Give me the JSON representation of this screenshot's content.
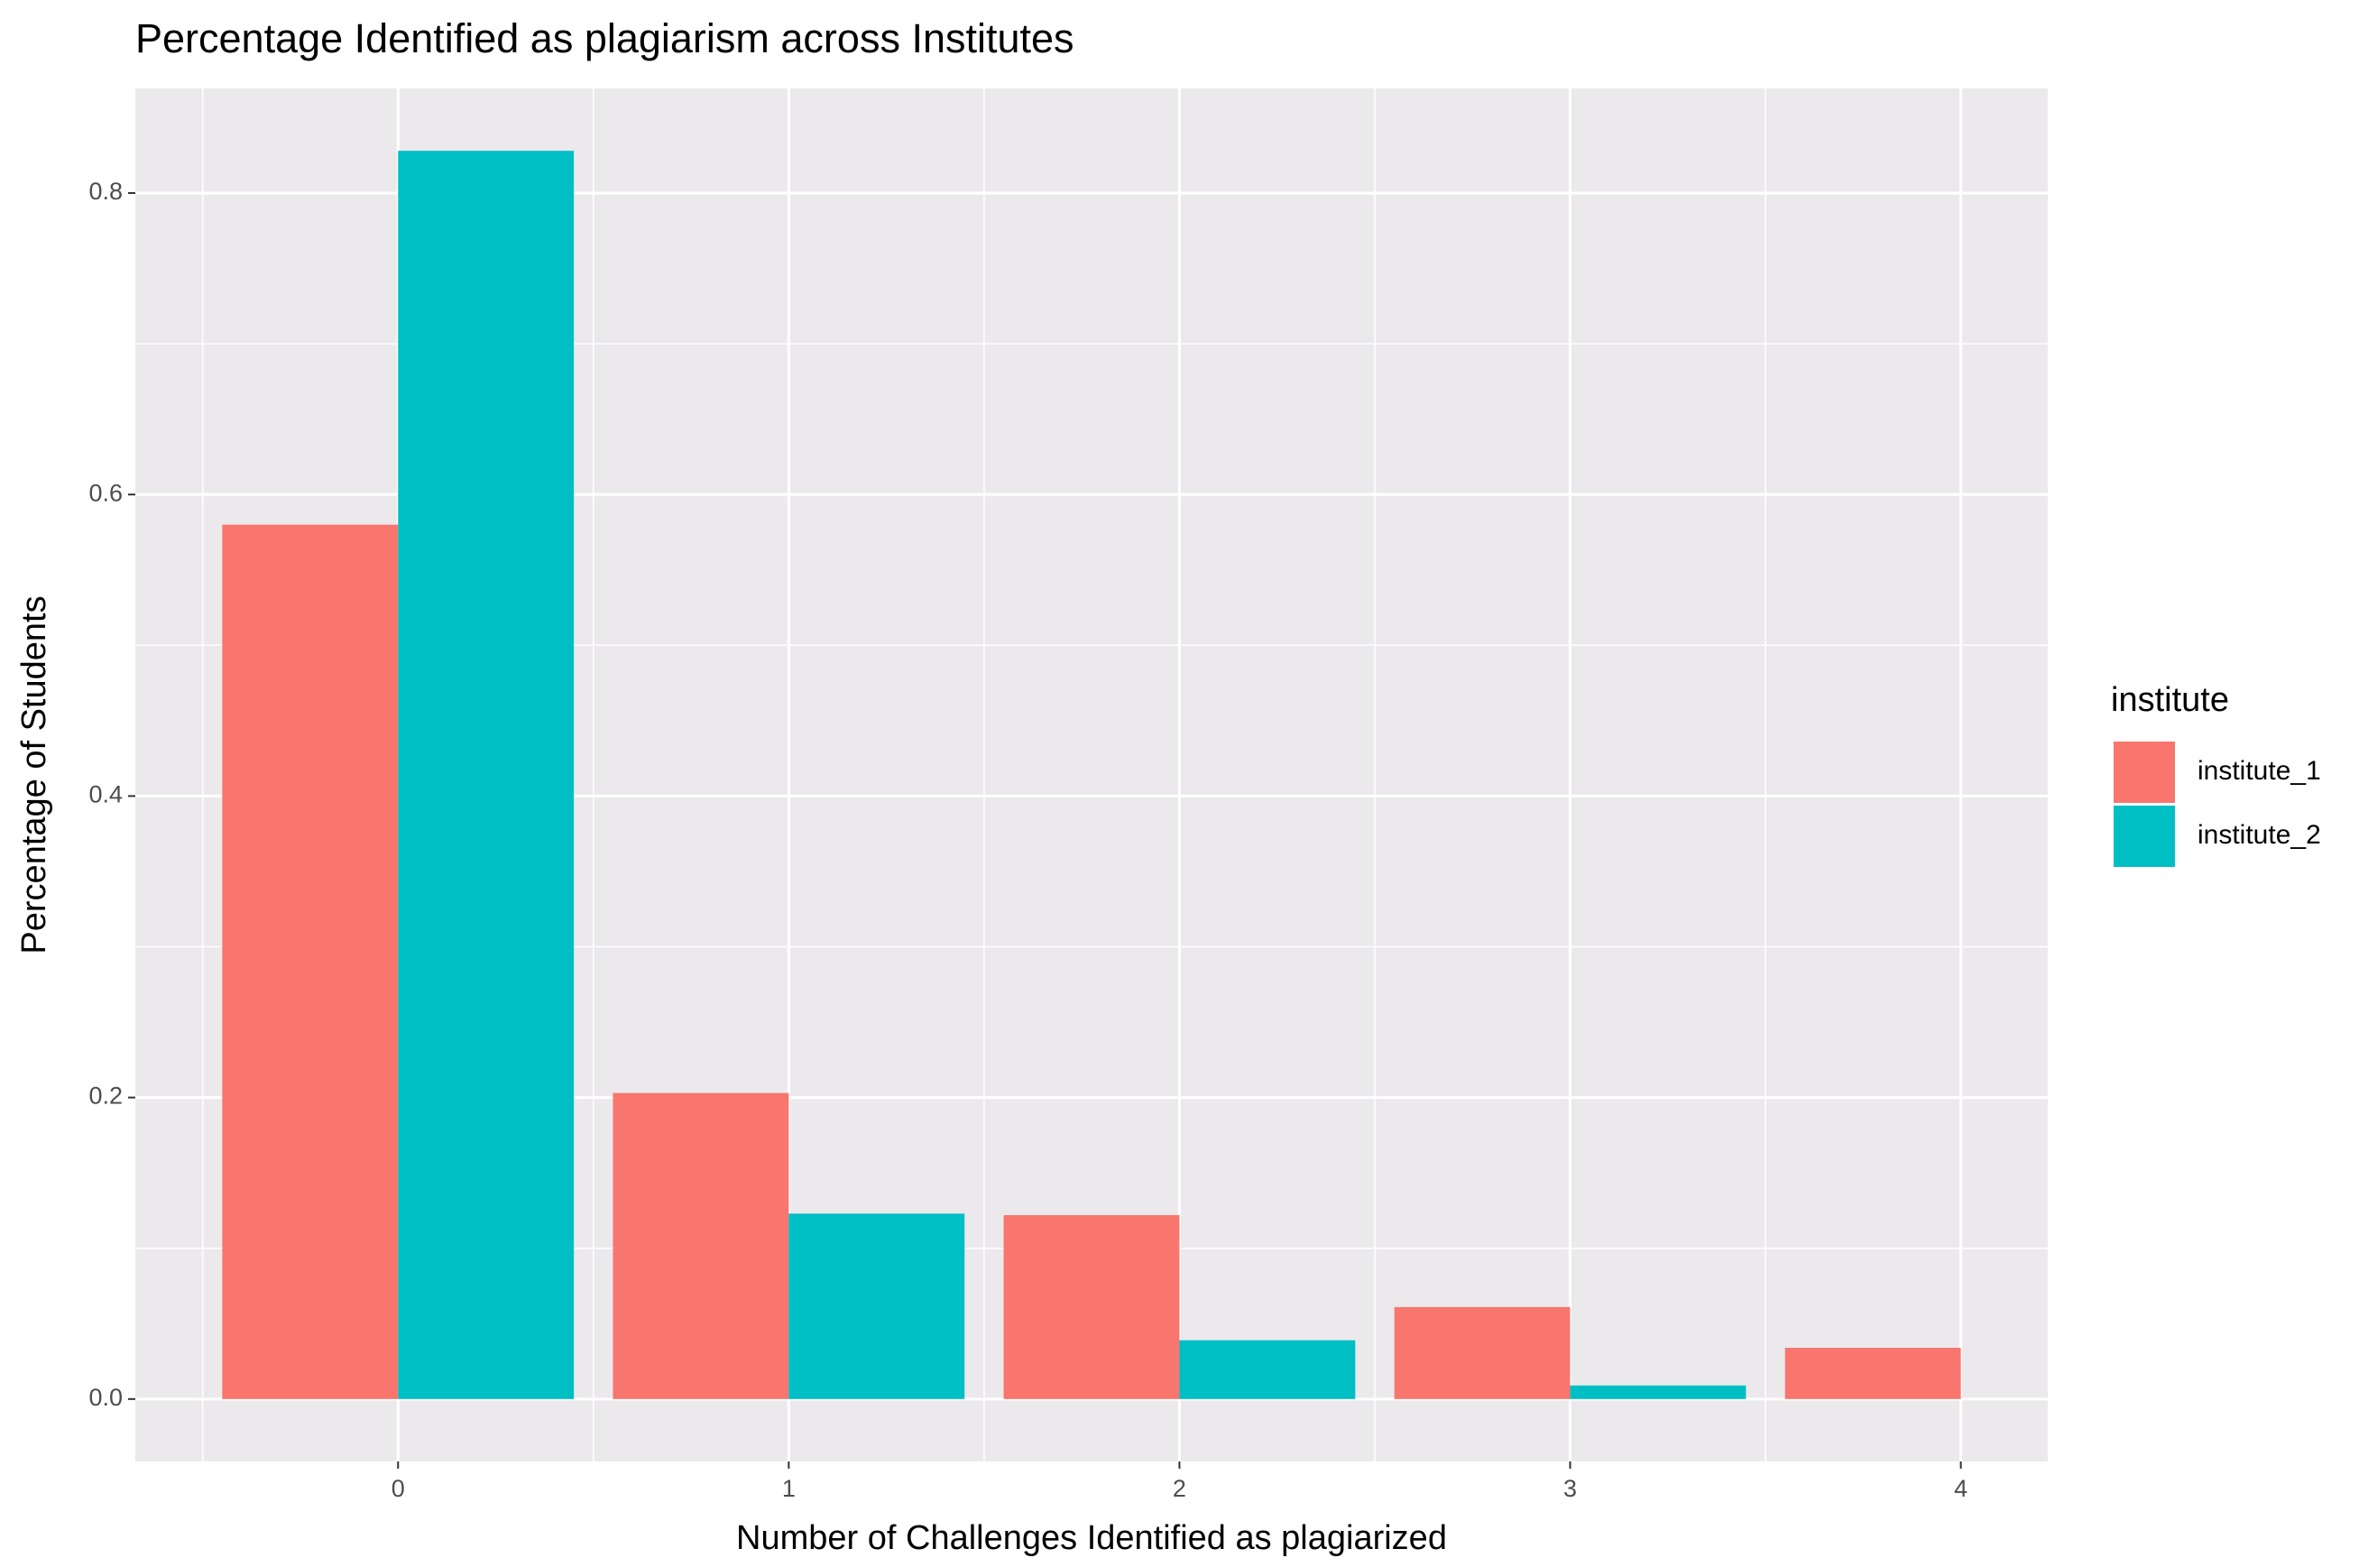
{
  "chart_data": {
    "type": "bar",
    "title": "Percentage Identified as plagiarism across Institutes",
    "x_label": "Number of Challenges Identified as plagiarized",
    "y_label": "Percentage of Students",
    "legend_title": "institute",
    "legend_position": "right",
    "x": [
      0,
      1,
      2,
      3,
      4
    ],
    "series": [
      {
        "name": "institute_1",
        "color": "#f8766d",
        "values": [
          0.58,
          0.203,
          0.122,
          0.061,
          0.034
        ]
      },
      {
        "name": "institute_2",
        "color": "#00bfc4",
        "values": [
          0.828,
          0.123,
          0.039,
          0.009,
          null
        ]
      }
    ],
    "xlim": [
      -0.6725,
      4.2225
    ],
    "xticks": [
      0,
      1,
      2,
      3,
      4
    ],
    "ylim": [
      -0.0414,
      0.8694
    ],
    "yticks": [
      {
        "value": 0,
        "label": "0.0"
      },
      0.2,
      0.4,
      0.6,
      0.8
    ],
    "grid": true
  }
}
